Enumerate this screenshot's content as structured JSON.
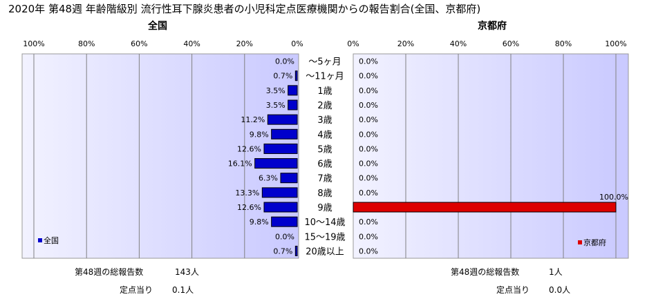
{
  "title": "2020年 第48週 年齢階級別 流行性耳下腺炎患者の小児科定点医療機関からの報告割合(全国、京都府)",
  "colors": {
    "plot_bg_start": "#f2f2ff",
    "plot_bg_end": "#c9c9ff",
    "national_bar": "#0000cc",
    "kyoto_bar": "#dd0000",
    "grid": "#808080"
  },
  "chart_data": [
    {
      "type": "bar",
      "orientation": "horizontal",
      "direction": "right-to-left",
      "panel_title": "全国",
      "legend": "全国",
      "legend_position": "bottom-left",
      "xlim": [
        0,
        100
      ],
      "x_ticks": [
        "100%",
        "80%",
        "60%",
        "40%",
        "20%",
        "0%"
      ],
      "grid": true,
      "categories": [
        "～5ヶ月",
        "～11ヶ月",
        "1歳",
        "2歳",
        "3歳",
        "4歳",
        "5歳",
        "6歳",
        "7歳",
        "8歳",
        "9歳",
        "10～14歳",
        "15～19歳",
        "20歳以上"
      ],
      "values": [
        0.0,
        0.7,
        3.5,
        3.5,
        11.2,
        9.8,
        12.6,
        16.1,
        6.3,
        13.3,
        12.6,
        9.8,
        0.0,
        0.7
      ],
      "labels": [
        "0.0%",
        "0.7%",
        "3.5%",
        "3.5%",
        "11.2%",
        "9.8%",
        "12.6%",
        "16.1%",
        "6.3%",
        "13.3%",
        "12.6%",
        "9.8%",
        "0.0%",
        "0.7%"
      ]
    },
    {
      "type": "bar",
      "orientation": "horizontal",
      "direction": "left-to-right",
      "panel_title": "京都府",
      "legend": "京都府",
      "legend_position": "bottom-right",
      "xlim": [
        0,
        100
      ],
      "x_ticks": [
        "0%",
        "20%",
        "40%",
        "60%",
        "80%",
        "100%"
      ],
      "grid": true,
      "categories": [
        "～5ヶ月",
        "～11ヶ月",
        "1歳",
        "2歳",
        "3歳",
        "4歳",
        "5歳",
        "6歳",
        "7歳",
        "8歳",
        "9歳",
        "10～14歳",
        "15～19歳",
        "20歳以上"
      ],
      "values": [
        0.0,
        0.0,
        0.0,
        0.0,
        0.0,
        0.0,
        0.0,
        0.0,
        0.0,
        0.0,
        100.0,
        0.0,
        0.0,
        0.0
      ],
      "labels": [
        "0.0%",
        "0.0%",
        "0.0%",
        "0.0%",
        "0.0%",
        "0.0%",
        "0.0%",
        "0.0%",
        "0.0%",
        "0.0%",
        "100.0%",
        "0.0%",
        "0.0%",
        "0.0%"
      ]
    }
  ],
  "footer": {
    "national": {
      "total_label": "第48週の総報告数",
      "total_value": "143人",
      "per_label": "定点当り",
      "per_value": "0.1人"
    },
    "kyoto": {
      "total_label": "第48週の総報告数",
      "total_value": "1人",
      "per_label": "定点当り",
      "per_value": "0.0人"
    }
  }
}
